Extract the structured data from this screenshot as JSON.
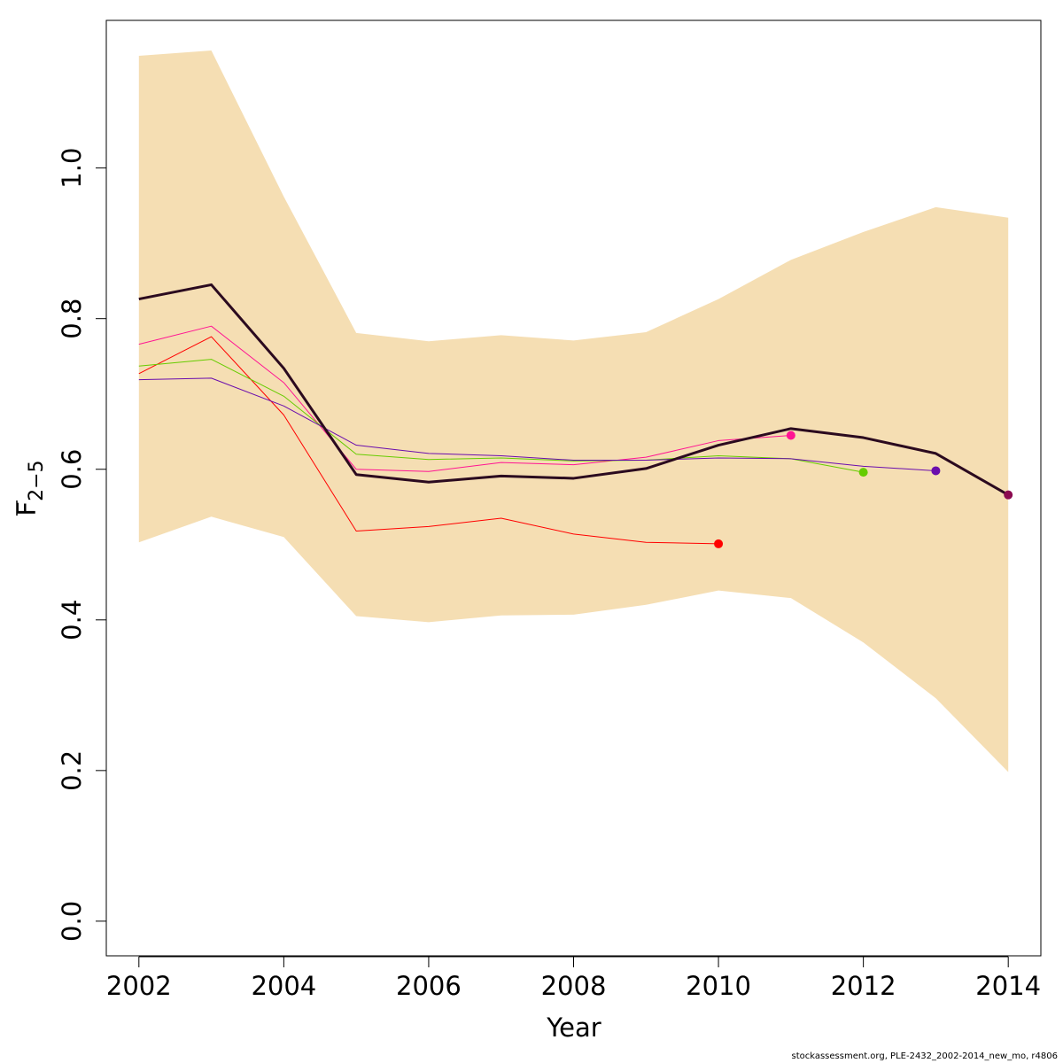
{
  "chart_data": {
    "type": "line",
    "xlabel": "Year",
    "ylabel_main": "F",
    "ylabel_sub": "2−5",
    "xlim": [
      2001.55,
      2014.45
    ],
    "ylim": [
      -0.046,
      1.196
    ],
    "x_ticks": [
      2002,
      2004,
      2006,
      2008,
      2010,
      2012,
      2014
    ],
    "y_ticks": [
      0.0,
      0.2,
      0.4,
      0.6,
      0.8,
      1.0
    ],
    "y_tick_labels": [
      "0.0",
      "0.2",
      "0.4",
      "0.6",
      "0.8",
      "1.0"
    ],
    "grid": false,
    "legend": "none",
    "confidence_band": {
      "color": "#F5DEB3",
      "x": [
        2002,
        2003,
        2004,
        2005,
        2006,
        2007,
        2008,
        2009,
        2010,
        2011,
        2012,
        2013,
        2014
      ],
      "upper": [
        1.149,
        1.156,
        0.962,
        0.781,
        0.77,
        0.778,
        0.771,
        0.782,
        0.826,
        0.878,
        0.915,
        0.948,
        0.934
      ],
      "lower": [
        0.503,
        0.537,
        0.51,
        0.405,
        0.397,
        0.406,
        0.407,
        0.42,
        0.439,
        0.429,
        0.37,
        0.296,
        0.198
      ]
    },
    "series": [
      {
        "color": "#FF0000",
        "width": 1,
        "x": [
          2002,
          2003,
          2004,
          2005,
          2006,
          2007,
          2008,
          2009,
          2010
        ],
        "values": [
          0.727,
          0.776,
          0.672,
          0.518,
          0.524,
          0.535,
          0.514,
          0.503,
          0.501
        ]
      },
      {
        "color": "#FF1493",
        "width": 1,
        "x": [
          2002,
          2003,
          2004,
          2005,
          2006,
          2007,
          2008,
          2009,
          2010,
          2011
        ],
        "values": [
          0.766,
          0.79,
          0.715,
          0.6,
          0.597,
          0.609,
          0.606,
          0.616,
          0.638,
          0.645
        ]
      },
      {
        "color": "#66CC00",
        "width": 1,
        "x": [
          2002,
          2003,
          2004,
          2005,
          2006,
          2007,
          2008,
          2009,
          2010,
          2011,
          2012
        ],
        "values": [
          0.737,
          0.746,
          0.697,
          0.62,
          0.613,
          0.615,
          0.611,
          0.612,
          0.618,
          0.614,
          0.596
        ]
      },
      {
        "color": "#6A0DAD",
        "width": 1,
        "x": [
          2002,
          2003,
          2004,
          2005,
          2006,
          2007,
          2008,
          2009,
          2010,
          2011,
          2012,
          2013
        ],
        "values": [
          0.719,
          0.721,
          0.684,
          0.632,
          0.621,
          0.618,
          0.612,
          0.612,
          0.615,
          0.614,
          0.604,
          0.598
        ]
      },
      {
        "color": "#2B0A1F",
        "endpoint_color": "#8B0A50",
        "width": 3,
        "x": [
          2002,
          2003,
          2004,
          2005,
          2006,
          2007,
          2008,
          2009,
          2010,
          2011,
          2012,
          2013,
          2014
        ],
        "values": [
          0.826,
          0.845,
          0.734,
          0.593,
          0.583,
          0.591,
          0.588,
          0.601,
          0.632,
          0.654,
          0.642,
          0.621,
          0.566
        ]
      }
    ]
  },
  "footer_text": "stockassessment.org, PLE-2432_2002-2014_new_mo, r4806"
}
